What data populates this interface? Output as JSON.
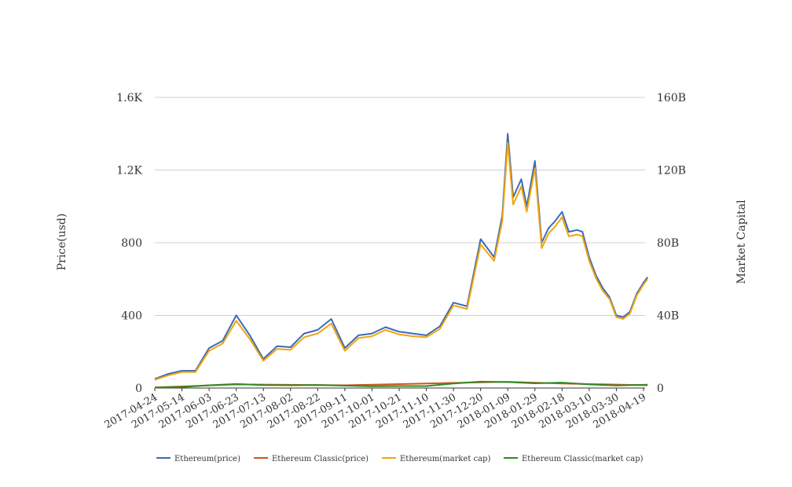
{
  "chart_data": {
    "type": "line",
    "title": "",
    "ylabel_left": "Price(usd)",
    "ylabel_right": "Market Capital",
    "ylim_left": [
      0,
      1600
    ],
    "ylim_right": [
      0,
      160000000000
    ],
    "y_ticks_left": [
      "0",
      "400",
      "800",
      "1.2K",
      "1.6K"
    ],
    "y_ticks_right": [
      "0",
      "40B",
      "80B",
      "120B",
      "160B"
    ],
    "x_tick_labels": [
      "2017-04-24",
      "2017-05-14",
      "2017-06-03",
      "2017-06-23",
      "2017-07-13",
      "2017-08-02",
      "2017-08-22",
      "2017-09-11",
      "2017-10-01",
      "2017-10-21",
      "2017-11-10",
      "2017-11-30",
      "2017-12-20",
      "2018-01-09",
      "2018-01-29",
      "2018-02-18",
      "2018-03-10",
      "2018-03-30",
      "2018-04-19"
    ],
    "grid": true,
    "legend_position": "bottom",
    "colors": {
      "eth_price": "#3a6bb5",
      "etc_price": "#d4531c",
      "eth_mcap": "#f2a40f",
      "etc_mcap": "#2e8b22",
      "grid": "#d0d0d0"
    },
    "series": [
      {
        "name": "Ethereum(price)",
        "axis": "left",
        "x": [
          "2017-04-24",
          "2017-05-04",
          "2017-05-14",
          "2017-05-24",
          "2017-06-03",
          "2017-06-13",
          "2017-06-23",
          "2017-07-03",
          "2017-07-13",
          "2017-07-23",
          "2017-08-02",
          "2017-08-12",
          "2017-08-22",
          "2017-09-01",
          "2017-09-11",
          "2017-09-21",
          "2017-10-01",
          "2017-10-11",
          "2017-10-21",
          "2017-10-31",
          "2017-11-10",
          "2017-11-20",
          "2017-11-30",
          "2017-12-10",
          "2017-12-20",
          "2017-12-30",
          "2018-01-05",
          "2018-01-09",
          "2018-01-13",
          "2018-01-19",
          "2018-01-23",
          "2018-01-29",
          "2018-02-03",
          "2018-02-08",
          "2018-02-13",
          "2018-02-18",
          "2018-02-23",
          "2018-03-01",
          "2018-03-05",
          "2018-03-10",
          "2018-03-15",
          "2018-03-20",
          "2018-03-25",
          "2018-03-30",
          "2018-04-04",
          "2018-04-09",
          "2018-04-14",
          "2018-04-19",
          "2018-04-22"
        ],
        "values": [
          50,
          78,
          95,
          95,
          220,
          260,
          400,
          290,
          160,
          230,
          225,
          300,
          320,
          380,
          220,
          290,
          300,
          335,
          310,
          300,
          290,
          340,
          470,
          450,
          820,
          720,
          950,
          1400,
          1050,
          1150,
          1000,
          1250,
          800,
          880,
          920,
          970,
          860,
          870,
          860,
          720,
          620,
          550,
          500,
          400,
          390,
          420,
          520,
          580,
          610
        ]
      },
      {
        "name": "Ethereum Classic(price)",
        "axis": "left",
        "x": [
          "2017-04-24",
          "2017-06-23",
          "2017-09-11",
          "2017-11-30",
          "2018-01-09",
          "2018-02-18",
          "2018-04-22"
        ],
        "values": [
          3,
          20,
          15,
          28,
          34,
          25,
          15
        ]
      },
      {
        "name": "Ethereum(market cap)",
        "axis": "right",
        "x": [
          "2017-04-24",
          "2017-05-04",
          "2017-05-14",
          "2017-05-24",
          "2017-06-03",
          "2017-06-13",
          "2017-06-23",
          "2017-07-03",
          "2017-07-13",
          "2017-07-23",
          "2017-08-02",
          "2017-08-12",
          "2017-08-22",
          "2017-09-01",
          "2017-09-11",
          "2017-09-21",
          "2017-10-01",
          "2017-10-11",
          "2017-10-21",
          "2017-10-31",
          "2017-11-10",
          "2017-11-20",
          "2017-11-30",
          "2017-12-10",
          "2017-12-20",
          "2017-12-30",
          "2018-01-05",
          "2018-01-09",
          "2018-01-13",
          "2018-01-19",
          "2018-01-23",
          "2018-01-29",
          "2018-02-03",
          "2018-02-08",
          "2018-02-13",
          "2018-02-18",
          "2018-02-23",
          "2018-03-01",
          "2018-03-05",
          "2018-03-10",
          "2018-03-15",
          "2018-03-20",
          "2018-03-25",
          "2018-03-30",
          "2018-04-04",
          "2018-04-09",
          "2018-04-14",
          "2018-04-19",
          "2018-04-22"
        ],
        "values": [
          4500000000,
          7000000000,
          8800000000,
          8800000000,
          20500000000,
          24500000000,
          37000000000,
          27000000000,
          15000000000,
          21500000000,
          21000000000,
          28000000000,
          30000000000,
          35500000000,
          20500000000,
          27500000000,
          28500000000,
          32000000000,
          29500000000,
          28500000000,
          28000000000,
          32500000000,
          45500000000,
          43500000000,
          79000000000,
          70000000000,
          92000000000,
          135000000000,
          101000000000,
          111000000000,
          97000000000,
          121000000000,
          77000000000,
          85000000000,
          89000000000,
          94000000000,
          83500000000,
          84500000000,
          83500000000,
          70000000000,
          60500000000,
          53500000000,
          49000000000,
          39000000000,
          38000000000,
          41000000000,
          51000000000,
          57000000000,
          60000000000
        ]
      },
      {
        "name": "Ethereum Classic(market cap)",
        "axis": "right",
        "x": [
          "2017-04-24",
          "2017-05-14",
          "2017-06-03",
          "2017-06-23",
          "2017-07-13",
          "2017-08-02",
          "2017-08-22",
          "2017-09-11",
          "2017-10-01",
          "2017-10-21",
          "2017-11-10",
          "2017-11-30",
          "2017-12-20",
          "2018-01-09",
          "2018-01-29",
          "2018-02-18",
          "2018-03-10",
          "2018-03-30",
          "2018-04-22"
        ],
        "values": [
          300000000,
          500000000,
          1500000000,
          2200000000,
          1600000000,
          1500000000,
          1700000000,
          1300000000,
          1000000000,
          1100000000,
          1100000000,
          2500000000,
          3500000000,
          3300000000,
          2600000000,
          3000000000,
          2000000000,
          1400000000,
          1800000000
        ]
      }
    ]
  }
}
